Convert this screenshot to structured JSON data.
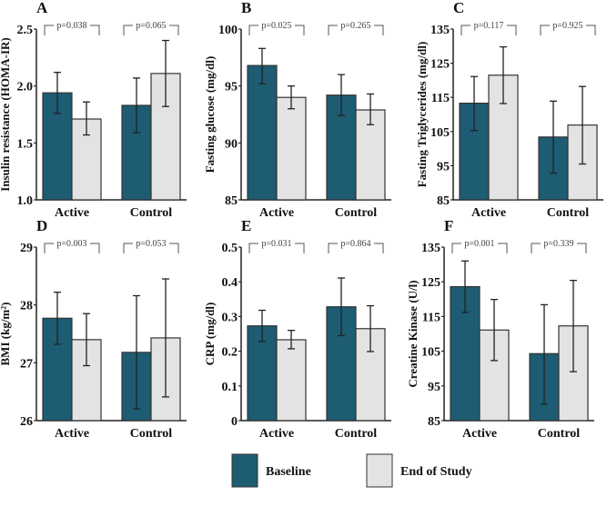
{
  "colors": {
    "baseline": "#1d5c73",
    "end_of_study": "#e3e3e3",
    "outline": "#333333"
  },
  "legend": {
    "position": "bottom-center",
    "items": [
      {
        "label": "Baseline",
        "color": "#1d5c73"
      },
      {
        "label": "End of Study",
        "color": "#e3e3e3"
      }
    ]
  },
  "chart_data": [
    {
      "type": "bar",
      "letter": "A",
      "ylabel": "Insulin resistance (HOMA-IR)",
      "ylim": [
        1.0,
        2.5
      ],
      "ticks": [
        "1.0",
        "1.5",
        "2.0",
        "2.5"
      ],
      "categories": [
        "Active",
        "Control"
      ],
      "p_values": [
        "p=0.038",
        "p=0.065"
      ],
      "series": [
        {
          "name": "Baseline",
          "values": [
            1.94,
            1.83
          ],
          "err_low": [
            1.76,
            1.59
          ],
          "err_high": [
            2.12,
            2.07
          ]
        },
        {
          "name": "End of Study",
          "values": [
            1.71,
            2.11
          ],
          "err_low": [
            1.57,
            1.82
          ],
          "err_high": [
            1.86,
            2.4
          ]
        }
      ]
    },
    {
      "type": "bar",
      "letter": "B",
      "ylabel": "Fasting glucose (mg/dl)",
      "ylim": [
        85,
        100
      ],
      "ticks": [
        "85",
        "90",
        "95",
        "100"
      ],
      "categories": [
        "Active",
        "Control"
      ],
      "p_values": [
        "p=0.025",
        "p=0.265"
      ],
      "series": [
        {
          "name": "Baseline",
          "values": [
            96.8,
            94.2
          ],
          "err_low": [
            95.2,
            92.4
          ],
          "err_high": [
            98.3,
            96.0
          ]
        },
        {
          "name": "End of Study",
          "values": [
            94.0,
            92.9
          ],
          "err_low": [
            93.0,
            91.6
          ],
          "err_high": [
            95.0,
            94.3
          ]
        }
      ]
    },
    {
      "type": "bar",
      "letter": "C",
      "ylabel": "Fasting Triglycerides (mg/dl)",
      "ylim": [
        85,
        135
      ],
      "ticks": [
        "85",
        "95",
        "105",
        "115",
        "125",
        "135"
      ],
      "categories": [
        "Active",
        "Control"
      ],
      "p_values": [
        "p=0.117",
        "p=0.925"
      ],
      "series": [
        {
          "name": "Baseline",
          "values": [
            113.3,
            103.4
          ],
          "err_low": [
            105.3,
            92.8
          ],
          "err_high": [
            121.1,
            113.9
          ]
        },
        {
          "name": "End of Study",
          "values": [
            121.5,
            106.9
          ],
          "err_low": [
            113.2,
            95.5
          ],
          "err_high": [
            129.8,
            118.2
          ]
        }
      ]
    },
    {
      "type": "bar",
      "letter": "D",
      "ylabel": "BMI (kg/m²)",
      "ylim": [
        26,
        29
      ],
      "ticks": [
        "26",
        "27",
        "28",
        "29"
      ],
      "categories": [
        "Active",
        "Control"
      ],
      "p_values": [
        "p=0.003",
        "p=0.053"
      ],
      "series": [
        {
          "name": "Baseline",
          "values": [
            27.77,
            27.18
          ],
          "err_low": [
            27.32,
            26.2
          ],
          "err_high": [
            28.22,
            28.16
          ]
        },
        {
          "name": "End of Study",
          "values": [
            27.4,
            27.43
          ],
          "err_low": [
            26.95,
            26.41
          ],
          "err_high": [
            27.85,
            28.45
          ]
        }
      ]
    },
    {
      "type": "bar",
      "letter": "E",
      "ylabel": "CRP (mg/dl)",
      "ylim": [
        0,
        0.5
      ],
      "ticks": [
        "0",
        "0.1",
        "0.2",
        "0.3",
        "0.4",
        "0.5"
      ],
      "categories": [
        "Active",
        "Control"
      ],
      "p_values": [
        "p=0.031",
        "p=0.864"
      ],
      "series": [
        {
          "name": "Baseline",
          "values": [
            0.273,
            0.328
          ],
          "err_low": [
            0.228,
            0.245
          ],
          "err_high": [
            0.318,
            0.411
          ]
        },
        {
          "name": "End of Study",
          "values": [
            0.233,
            0.265
          ],
          "err_low": [
            0.207,
            0.199
          ],
          "err_high": [
            0.26,
            0.331
          ]
        }
      ]
    },
    {
      "type": "bar",
      "letter": "F",
      "ylabel": "Creatine Kinase (U/l)",
      "ylim": [
        85,
        135
      ],
      "ticks": [
        "85",
        "95",
        "105",
        "115",
        "125",
        "135"
      ],
      "categories": [
        "Active",
        "Control"
      ],
      "p_values": [
        "p=0.001",
        "p=0.339"
      ],
      "series": [
        {
          "name": "Baseline",
          "values": [
            123.6,
            104.3
          ],
          "err_low": [
            116.2,
            89.7
          ],
          "err_high": [
            131.0,
            118.4
          ]
        },
        {
          "name": "End of Study",
          "values": [
            111.1,
            112.3
          ],
          "err_low": [
            102.3,
            99.1
          ],
          "err_high": [
            119.9,
            125.4
          ]
        }
      ]
    }
  ]
}
